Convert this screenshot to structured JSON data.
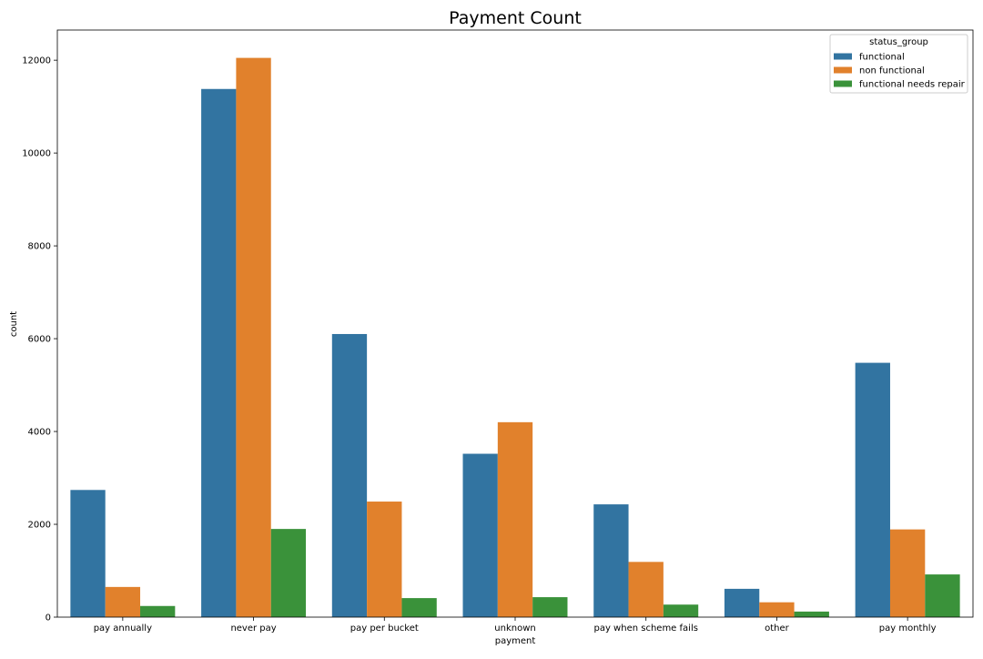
{
  "chart_data": {
    "type": "bar",
    "title": "Payment Count",
    "xlabel": "payment",
    "ylabel": "count",
    "categories": [
      "pay annually",
      "never pay",
      "pay per bucket",
      "unknown",
      "pay when scheme fails",
      "other",
      "pay monthly"
    ],
    "series": [
      {
        "name": "functional",
        "color": "#3274a1",
        "values": [
          2740,
          11380,
          6100,
          3520,
          2430,
          610,
          5480
        ]
      },
      {
        "name": "non functional",
        "color": "#e1812c",
        "values": [
          650,
          12050,
          2490,
          4200,
          1190,
          320,
          1890
        ]
      },
      {
        "name": "functional needs repair",
        "color": "#3a923a",
        "values": [
          240,
          1900,
          410,
          430,
          270,
          120,
          920
        ]
      }
    ],
    "ylim": [
      0,
      12650
    ],
    "yticks": [
      0,
      2000,
      4000,
      6000,
      8000,
      10000,
      12000
    ],
    "legend": {
      "title": "status_group",
      "position": "top-right"
    },
    "grid": false
  }
}
